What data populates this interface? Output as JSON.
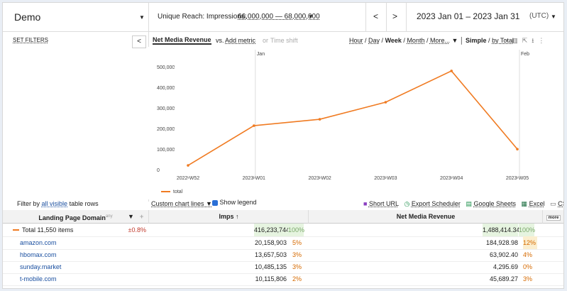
{
  "header": {
    "title": "Demo",
    "reach_label": "Unique Reach: Impressions:",
    "reach_range": "66,000,000 — 68,000,000",
    "date_range": "2023 Jan 01 – 2023 Jan 31",
    "timezone": "(UTC)"
  },
  "sidebar": {
    "set_filters": "SET FILTERS"
  },
  "toolbar": {
    "metric": "Net Media Revenue",
    "vs": "vs.",
    "add_metric": "Add metric",
    "or": "or",
    "time_shift": "Time shift",
    "granularity": [
      "Hour",
      "Day",
      "Week",
      "Month",
      "More..."
    ],
    "mode": [
      "Simple",
      "by Total"
    ]
  },
  "chart_data": {
    "type": "line",
    "categories": [
      "2022-W52",
      "2023-W01",
      "2023-W02",
      "2023-W03",
      "2023-W04",
      "2023-W05"
    ],
    "series": [
      {
        "name": "total",
        "color": "#f07b22",
        "values": [
          24000,
          217000,
          248000,
          331000,
          483000,
          103000
        ]
      }
    ],
    "ylim": [
      -27600,
      586200
    ],
    "yticks": [
      0,
      {
        "value": 100000,
        "label": "100,000"
      },
      {
        "value": 200000,
        "label": "200,000"
      },
      {
        "value": 300000,
        "label": "300,000"
      },
      {
        "value": 400000,
        "label": "400,000"
      },
      {
        "value": 500000,
        "label": "500,000"
      }
    ],
    "annotations": [
      "Jan",
      "Feb"
    ]
  },
  "controls": {
    "filter_prefix": "Filter by",
    "filter_link": "all visible",
    "filter_suffix": "table rows",
    "custom_lines": "Custom chart lines",
    "show_legend": "Show legend",
    "exports": [
      "Short URL",
      "Export Scheduler",
      "Google Sheets",
      "Excel",
      "CSV"
    ]
  },
  "table": {
    "columns": [
      "Landing Page Domain",
      "Imps ↑",
      "Net Media Revenue"
    ],
    "column_sup": "any",
    "more": "more",
    "total": [
      "Total 11,550 items",
      "±0.8%",
      "416,233,744",
      "100%",
      "1,488,414.34",
      "100%"
    ],
    "rows": [
      [
        "amazon.com",
        "20,158,903",
        "5%",
        "184,928.98",
        "12%"
      ],
      [
        "hbomax.com",
        "13,657,503",
        "3%",
        "63,902.40",
        "4%"
      ],
      [
        "sunday.market",
        "10,485,135",
        "3%",
        "4,295.69",
        "0%"
      ],
      [
        "t-mobile.com",
        "10,115,806",
        "2%",
        "45,689.27",
        "3%"
      ]
    ]
  }
}
